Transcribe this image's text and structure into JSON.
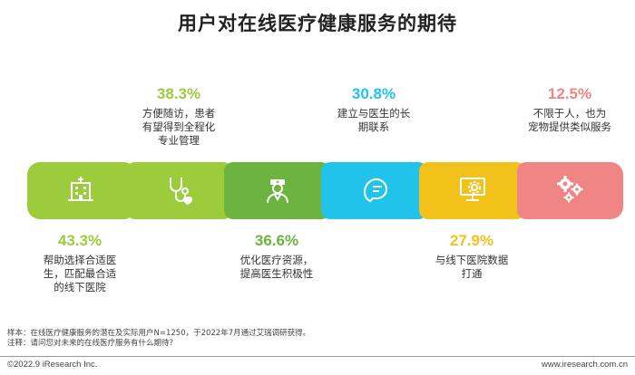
{
  "title": "用户对在线医疗健康服务的期待",
  "chart_data": {
    "type": "bar",
    "title": "用户对在线医疗健康服务的期待",
    "unit": "%",
    "categories": [
      "帮助选择合适医生，匹配最合适的线下医院",
      "方便随访，患者有望得到全程化专业管理",
      "优化医疗资源，提高医生积极性",
      "建立与医生的长期联系",
      "与线下医院数据打通",
      "不限于人，也为宠物提供类似服务"
    ],
    "values": [
      43.3,
      38.3,
      36.6,
      30.8,
      27.9,
      12.5
    ],
    "labels": [
      "43.3%",
      "38.3%",
      "36.6%",
      "30.8%",
      "27.9%",
      "12.5%"
    ]
  },
  "items": [
    {
      "pct": "43.3%",
      "desc": "帮助选择合适医\n生，匹配最合适\n的线下医院",
      "color": "#9ccc3c",
      "icon": "hospital-building-icon",
      "position": "below"
    },
    {
      "pct": "38.3%",
      "desc": "方便随访，患者\n有望得到全程化\n专业管理",
      "color": "#9ccc3c",
      "icon": "stethoscope-heart-icon",
      "position": "above"
    },
    {
      "pct": "36.6%",
      "desc": "优化医疗资源，\n提高医生积极性",
      "color": "#6db33f",
      "icon": "doctor-icon",
      "position": "below"
    },
    {
      "pct": "30.8%",
      "desc": "建立与医生的长\n期联系",
      "color": "#22c3ea",
      "icon": "chat-bubble-icon",
      "position": "above"
    },
    {
      "pct": "27.9%",
      "desc": "与线下医院数据\n打通",
      "color": "#f2c21b",
      "icon": "monitor-gear-icon",
      "position": "below"
    },
    {
      "pct": "12.5%",
      "desc": "不限于人，也为\n宠物提供类似服务",
      "color": "#f08585",
      "icon": "gears-icon",
      "position": "above"
    }
  ],
  "notes": {
    "sample": "样本：在线医疗健康服务的潜在及实际用户N=1250，于2022年7月通过艾瑞调研获得。",
    "note": "注释：请问您对未来的在线医疗服务有什么期待？"
  },
  "footer": {
    "left": "©2022.9 iResearch Inc.",
    "right": "www.iresearch.com.cn"
  },
  "colors": {
    "green_light": "#9ccc3c",
    "green": "#6db33f",
    "blue": "#22c3ea",
    "yellow": "#f2c21b",
    "pink": "#f08585"
  }
}
